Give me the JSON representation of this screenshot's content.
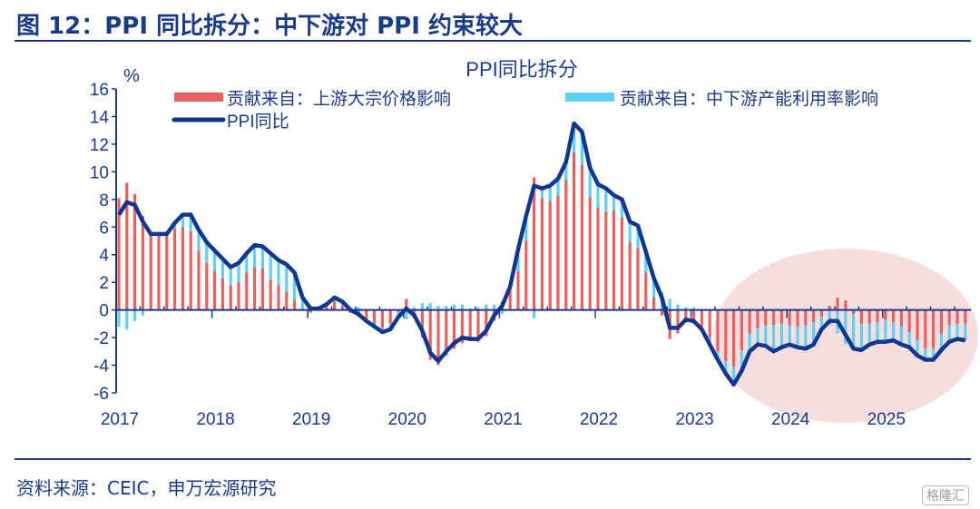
{
  "figure_title": "图 12：PPI 同比拆分：中下游对 PPI 约束较大",
  "source": "资料来源：CEIC，申万宏源研究",
  "watermark": "格隆汇",
  "chart_data": {
    "type": "bar+line",
    "title": "PPI同比拆分",
    "ylabel": "%",
    "ylim": [
      -6,
      16
    ],
    "yticks": [
      16,
      14,
      12,
      10,
      8,
      6,
      4,
      2,
      0,
      -2,
      -4,
      -6
    ],
    "xticks": [
      "2017",
      "2018",
      "2019",
      "2020",
      "2021",
      "2022",
      "2023",
      "2024",
      "2025"
    ],
    "x_start": "2017-01",
    "x_end": "2025-11",
    "frequency": "monthly",
    "legend_position": "top",
    "highlight": "shaded ellipse over 2023H2–2025",
    "colors": {
      "upstream": "#e8615f",
      "midstream": "#5fd0f5",
      "ppi": "#0f3690",
      "axis": "#1a3a8a",
      "highlight": "#f6dede"
    },
    "series": [
      {
        "name": "贡献来自：上游大宗价格影响",
        "kind": "bar",
        "values": [
          8.1,
          9.2,
          8.4,
          6.8,
          5.5,
          5.4,
          5.4,
          5.9,
          6.0,
          5.7,
          4.3,
          3.4,
          2.8,
          2.3,
          1.8,
          2.0,
          2.7,
          3.1,
          3.0,
          2.2,
          1.8,
          1.3,
          0.7,
          0.1,
          -0.2,
          0.1,
          0.3,
          0.6,
          0.3,
          -0.2,
          -0.5,
          -0.7,
          -1.0,
          -1.3,
          -1.0,
          -0.2,
          0.8,
          -0.6,
          -2.0,
          -3.6,
          -4.0,
          -3.3,
          -2.8,
          -2.4,
          -2.2,
          -2.3,
          -1.9,
          -0.8,
          0.6,
          1.4,
          2.8,
          5.0,
          9.6,
          8.1,
          7.9,
          8.3,
          9.4,
          11.4,
          10.5,
          8.2,
          7.4,
          7.1,
          7.2,
          6.7,
          4.9,
          4.5,
          2.7,
          0.9,
          -0.4,
          -2.1,
          -1.7,
          -0.9,
          -1.0,
          -1.3,
          -2.0,
          -3.0,
          -3.7,
          -4.1,
          -2.9,
          -1.7,
          -1.3,
          -1.1,
          -1.1,
          -1.0,
          -1.1,
          -1.2,
          -1.1,
          -0.9,
          -0.5,
          0.3,
          0.9,
          0.7,
          -0.3,
          -1.0,
          -1.0,
          -0.9,
          -0.7,
          -0.9,
          -1.2,
          -1.6,
          -2.2,
          -2.8,
          -2.8,
          -1.7,
          -1.1,
          -1.0,
          -1.0
        ]
      },
      {
        "name": "贡献来自：中下游产能利用率影响",
        "kind": "bar",
        "values": [
          -1.2,
          -1.4,
          -0.8,
          -0.4,
          0,
          0.1,
          0.1,
          0.4,
          0.9,
          1.2,
          1.5,
          1.5,
          1.5,
          1.4,
          1.3,
          1.4,
          1.4,
          1.6,
          1.6,
          1.9,
          1.8,
          2.0,
          2.0,
          0.8,
          0.3,
          0,
          0.1,
          0.3,
          0.3,
          0.2,
          0.2,
          -0.1,
          -0.2,
          -0.3,
          -0.4,
          -0.3,
          -0.7,
          0.2,
          0.5,
          0.5,
          0.3,
          0.3,
          0.4,
          0.4,
          0.1,
          0.2,
          0.4,
          0.4,
          -0.3,
          0.3,
          1.6,
          1.8,
          -0.6,
          0.7,
          1.1,
          1.2,
          1.3,
          2.1,
          2.4,
          2.1,
          1.7,
          1.7,
          1.1,
          1.3,
          1.5,
          1.6,
          1.5,
          1.4,
          1.3,
          0.8,
          0.4,
          0.2,
          0.2,
          -0.1,
          -0.5,
          -0.6,
          -0.9,
          -1.3,
          -1.5,
          -1.3,
          -1.2,
          -1.5,
          -1.9,
          -1.7,
          -1.4,
          -1.5,
          -1.7,
          -1.6,
          -0.9,
          -1.1,
          -1.7,
          -2.5,
          -2.5,
          -1.9,
          -1.5,
          -1.4,
          -1.6,
          -1.3,
          -1.3,
          -1.1,
          -1.1,
          -0.8,
          -0.8,
          -1.2,
          -1.2,
          -1.1,
          -1.2
        ]
      },
      {
        "name": "PPI同比",
        "kind": "line",
        "values": [
          6.9,
          7.8,
          7.6,
          6.4,
          5.5,
          5.5,
          5.5,
          6.3,
          6.9,
          6.9,
          5.8,
          4.9,
          4.3,
          3.7,
          3.1,
          3.4,
          4.1,
          4.7,
          4.6,
          4.1,
          3.6,
          3.3,
          2.7,
          0.9,
          0.1,
          0.1,
          0.4,
          0.9,
          0.6,
          0.0,
          -0.3,
          -0.8,
          -1.2,
          -1.6,
          -1.4,
          -0.5,
          0.1,
          -0.4,
          -1.5,
          -3.1,
          -3.7,
          -3.0,
          -2.4,
          -2.0,
          -2.1,
          -2.1,
          -1.5,
          -0.4,
          0.3,
          1.7,
          4.4,
          6.8,
          9.0,
          8.8,
          9.0,
          9.5,
          10.7,
          13.5,
          12.9,
          10.3,
          9.1,
          8.8,
          8.3,
          8.0,
          6.4,
          6.1,
          4.2,
          2.3,
          0.9,
          -1.3,
          -1.3,
          -0.7,
          -0.8,
          -1.4,
          -2.5,
          -3.6,
          -4.6,
          -5.4,
          -4.4,
          -3.0,
          -2.5,
          -2.6,
          -3.0,
          -2.7,
          -2.5,
          -2.7,
          -2.8,
          -2.5,
          -1.4,
          -0.8,
          -0.8,
          -1.8,
          -2.8,
          -2.9,
          -2.5,
          -2.3,
          -2.3,
          -2.2,
          -2.5,
          -2.7,
          -3.3,
          -3.6,
          -3.6,
          -2.9,
          -2.3,
          -2.1,
          -2.2
        ]
      }
    ]
  }
}
